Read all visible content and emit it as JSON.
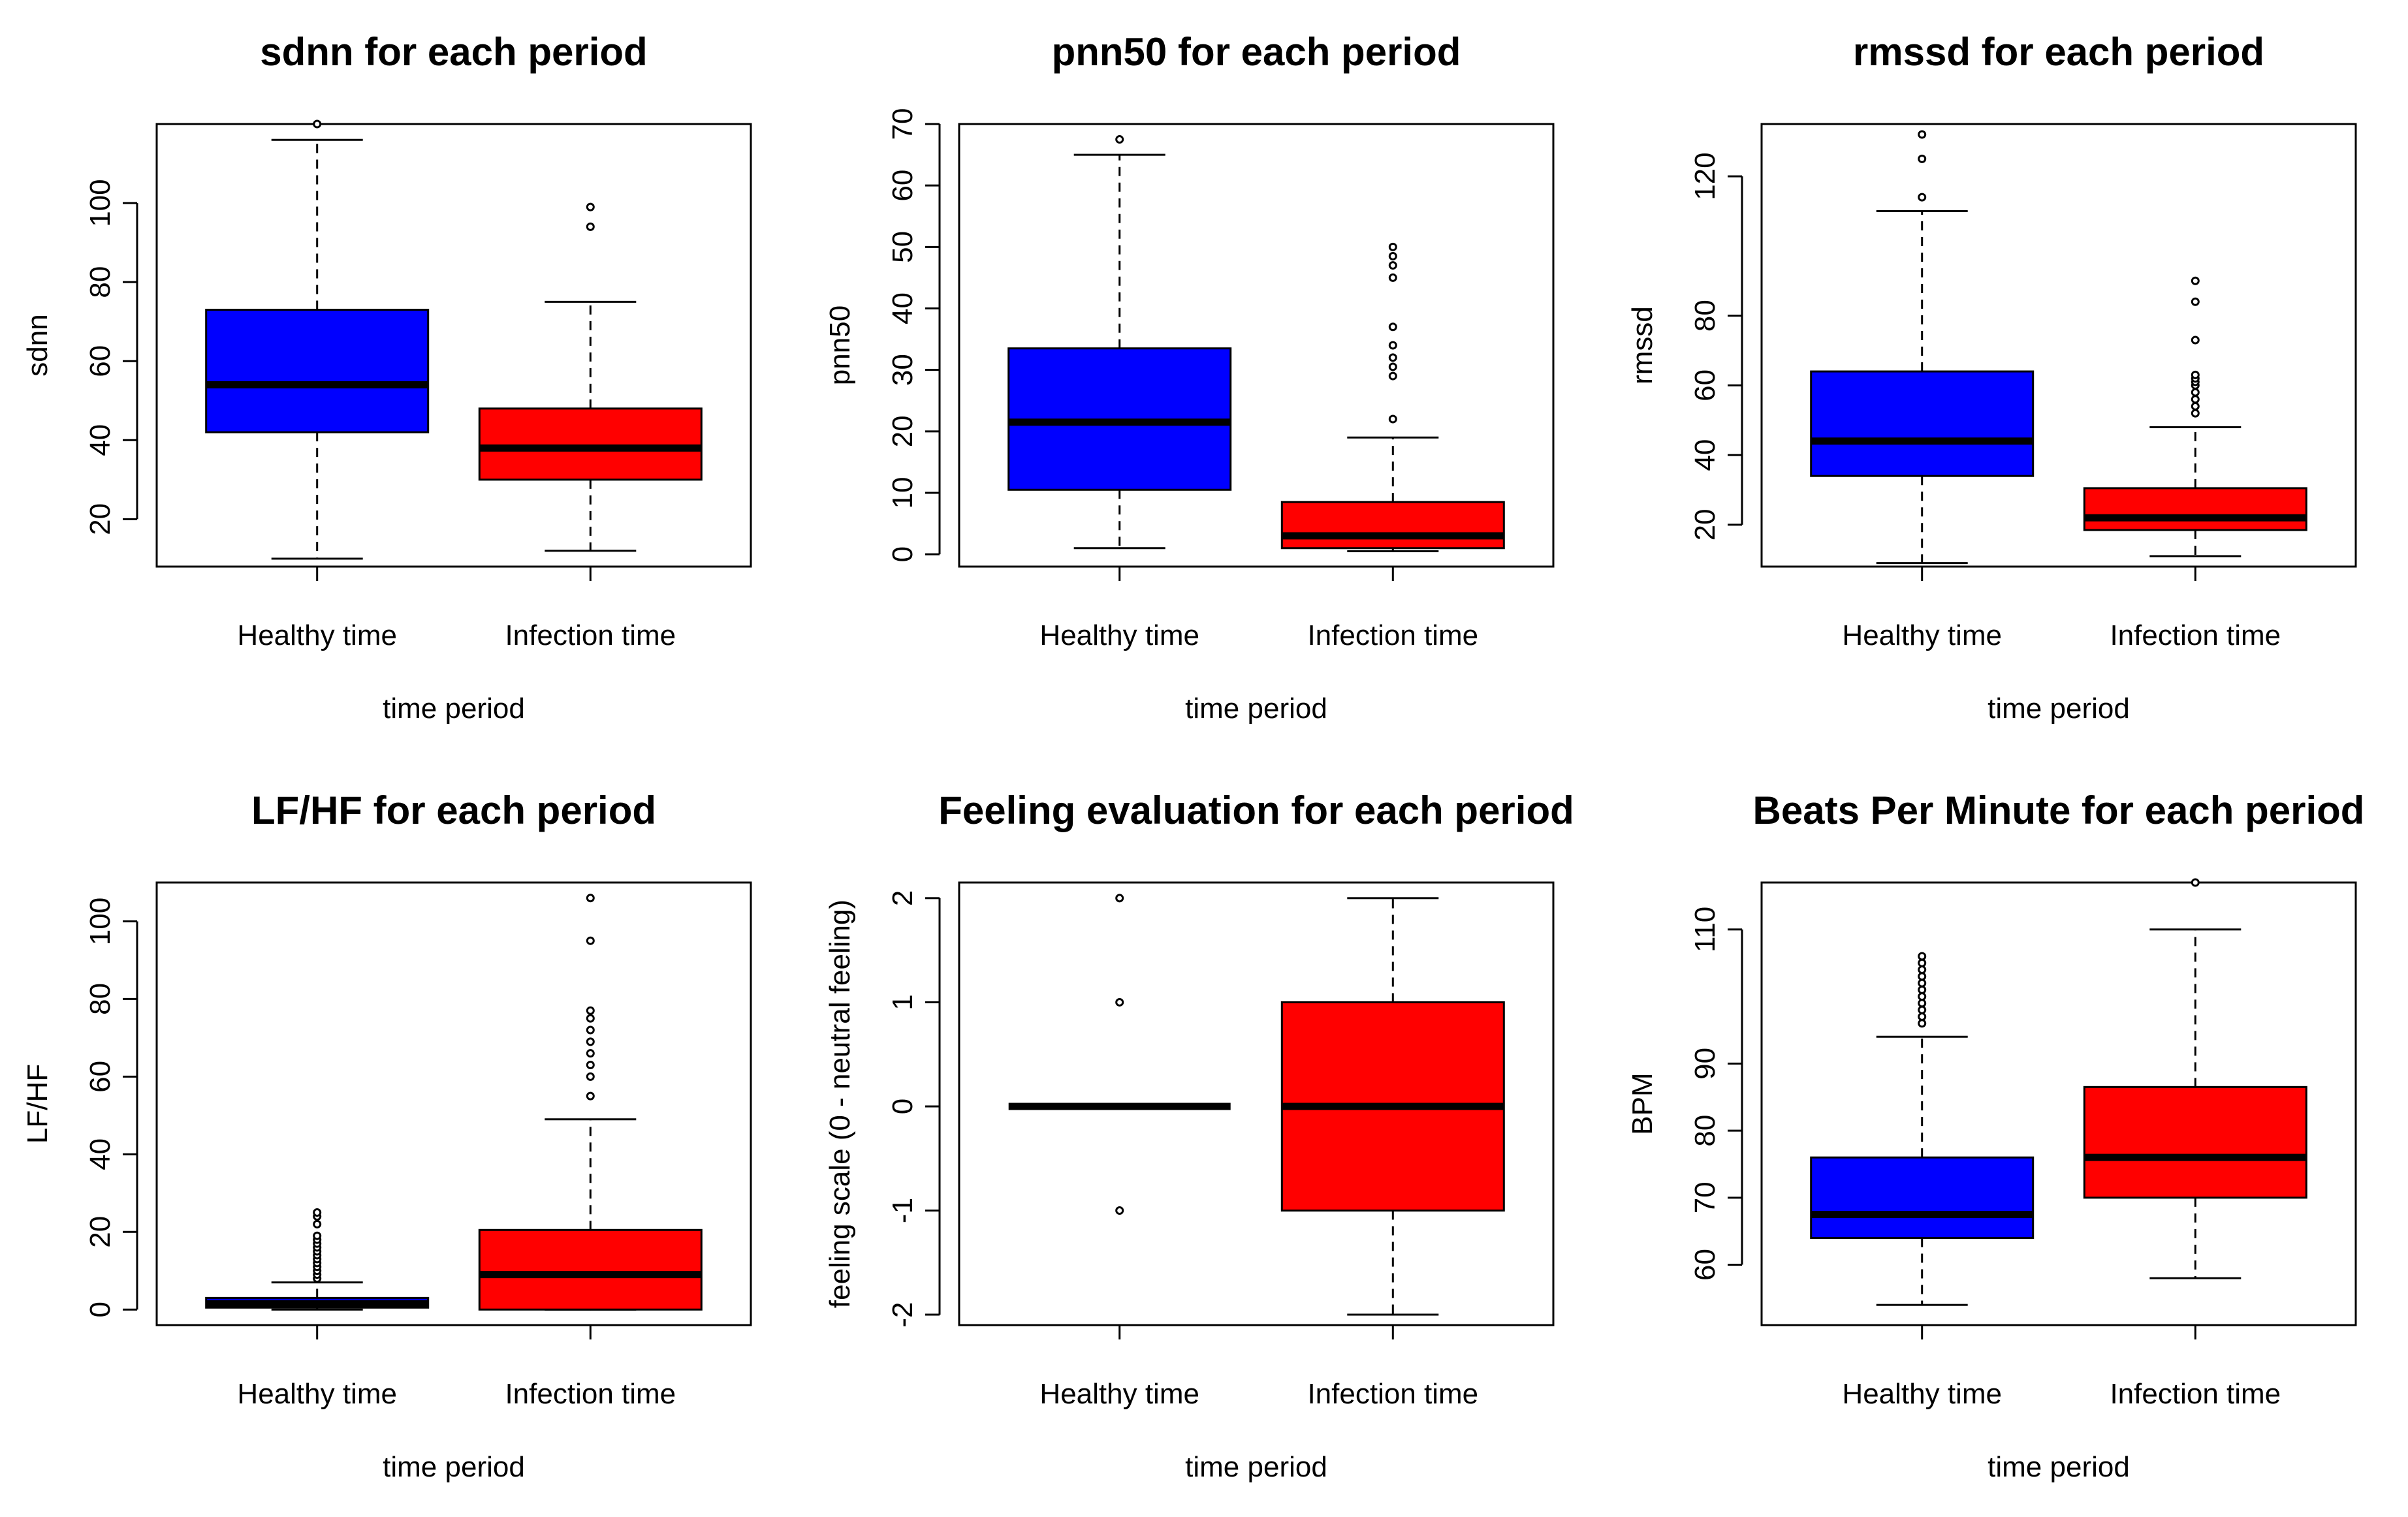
{
  "chart_data": [
    {
      "type": "boxplot",
      "title": "sdnn for each period",
      "xlabel": "time period",
      "ylabel": "sdnn",
      "categories": [
        "Healthy time",
        "Infection time"
      ],
      "ylim": [
        8,
        120
      ],
      "yticks": [
        20,
        40,
        60,
        80,
        100
      ],
      "colors": [
        "#0000ff",
        "#ff0000"
      ],
      "boxes": [
        {
          "lower_whisker": 10,
          "q1": 42,
          "median": 54,
          "q3": 73,
          "upper_whisker": 116,
          "outliers": [
            120
          ]
        },
        {
          "lower_whisker": 12,
          "q1": 30,
          "median": 38,
          "q3": 48,
          "upper_whisker": 75,
          "outliers": [
            94,
            99
          ]
        }
      ]
    },
    {
      "type": "boxplot",
      "title": "pnn50 for each period",
      "xlabel": "time period",
      "ylabel": "pnn50",
      "categories": [
        "Healthy time",
        "Infection time"
      ],
      "ylim": [
        -2,
        70
      ],
      "yticks": [
        0,
        10,
        20,
        30,
        40,
        50,
        60,
        70
      ],
      "colors": [
        "#0000ff",
        "#ff0000"
      ],
      "boxes": [
        {
          "lower_whisker": 1,
          "q1": 10.5,
          "median": 21.5,
          "q3": 33.5,
          "upper_whisker": 65,
          "outliers": [
            67.5
          ]
        },
        {
          "lower_whisker": 0.5,
          "q1": 1,
          "median": 3,
          "q3": 8.5,
          "upper_whisker": 19,
          "outliers": [
            22,
            29,
            30.5,
            32,
            34,
            37,
            45,
            47,
            48.5,
            50
          ]
        }
      ]
    },
    {
      "type": "boxplot",
      "title": "rmssd for each period",
      "xlabel": "time period",
      "ylabel": "rmssd",
      "categories": [
        "Healthy time",
        "Infection time"
      ],
      "ylim": [
        8,
        135
      ],
      "yticks": [
        20,
        40,
        60,
        80,
        120
      ],
      "colors": [
        "#0000ff",
        "#ff0000"
      ],
      "boxes": [
        {
          "lower_whisker": 9,
          "q1": 34,
          "median": 44,
          "q3": 64,
          "upper_whisker": 110,
          "outliers": [
            114,
            125,
            132
          ]
        },
        {
          "lower_whisker": 11,
          "q1": 18.5,
          "median": 22,
          "q3": 30.5,
          "upper_whisker": 48,
          "outliers": [
            52,
            54,
            56,
            58,
            60,
            61,
            62,
            63,
            73,
            84,
            90
          ]
        }
      ]
    },
    {
      "type": "boxplot",
      "title": "LF/HF for each period",
      "xlabel": "time period",
      "ylabel": "LF/HF",
      "categories": [
        "Healthy time",
        "Infection time"
      ],
      "ylim": [
        -4,
        110
      ],
      "yticks": [
        0,
        20,
        40,
        60,
        80,
        100
      ],
      "colors": [
        "#0000ff",
        "#ff0000"
      ],
      "boxes": [
        {
          "lower_whisker": 0,
          "q1": 0.5,
          "median": 1.5,
          "q3": 3,
          "upper_whisker": 7,
          "outliers": [
            8,
            9,
            10,
            11,
            12,
            13,
            14,
            15,
            16,
            17,
            18,
            19,
            22,
            24,
            25
          ]
        },
        {
          "lower_whisker": 0,
          "q1": 0,
          "median": 9,
          "q3": 20.5,
          "upper_whisker": 49,
          "outliers": [
            55,
            60,
            63,
            66,
            69,
            72,
            75,
            77,
            95,
            106
          ]
        }
      ]
    },
    {
      "type": "boxplot",
      "title": "Feeling evaluation for each period",
      "xlabel": "time period",
      "ylabel": "feeling scale (0 - neutral feeling)",
      "categories": [
        "Healthy time",
        "Infection time"
      ],
      "ylim": [
        -2.1,
        2.15
      ],
      "yticks": [
        -2,
        -1,
        0,
        1,
        2
      ],
      "colors": [
        "#0000ff",
        "#ff0000"
      ],
      "boxes": [
        {
          "lower_whisker": 0,
          "q1": 0,
          "median": 0,
          "q3": 0,
          "upper_whisker": 0,
          "outliers": [
            -1,
            1,
            2
          ]
        },
        {
          "lower_whisker": -2,
          "q1": -1,
          "median": 0,
          "q3": 1,
          "upper_whisker": 2,
          "outliers": []
        }
      ]
    },
    {
      "type": "boxplot",
      "title": "Beats Per Minute for each period",
      "xlabel": "time period",
      "ylabel": "BPM",
      "categories": [
        "Healthy time",
        "Infection time"
      ],
      "ylim": [
        51,
        117
      ],
      "yticks": [
        60,
        70,
        80,
        90,
        110
      ],
      "colors": [
        "#0000ff",
        "#ff0000"
      ],
      "boxes": [
        {
          "lower_whisker": 54,
          "q1": 64,
          "median": 67.5,
          "q3": 76,
          "upper_whisker": 94,
          "outliers": [
            96,
            97,
            98,
            99,
            100,
            101,
            102,
            103,
            104,
            105,
            106
          ]
        },
        {
          "lower_whisker": 58,
          "q1": 70,
          "median": 76,
          "q3": 86.5,
          "upper_whisker": 110,
          "outliers": [
            117
          ]
        }
      ]
    }
  ]
}
